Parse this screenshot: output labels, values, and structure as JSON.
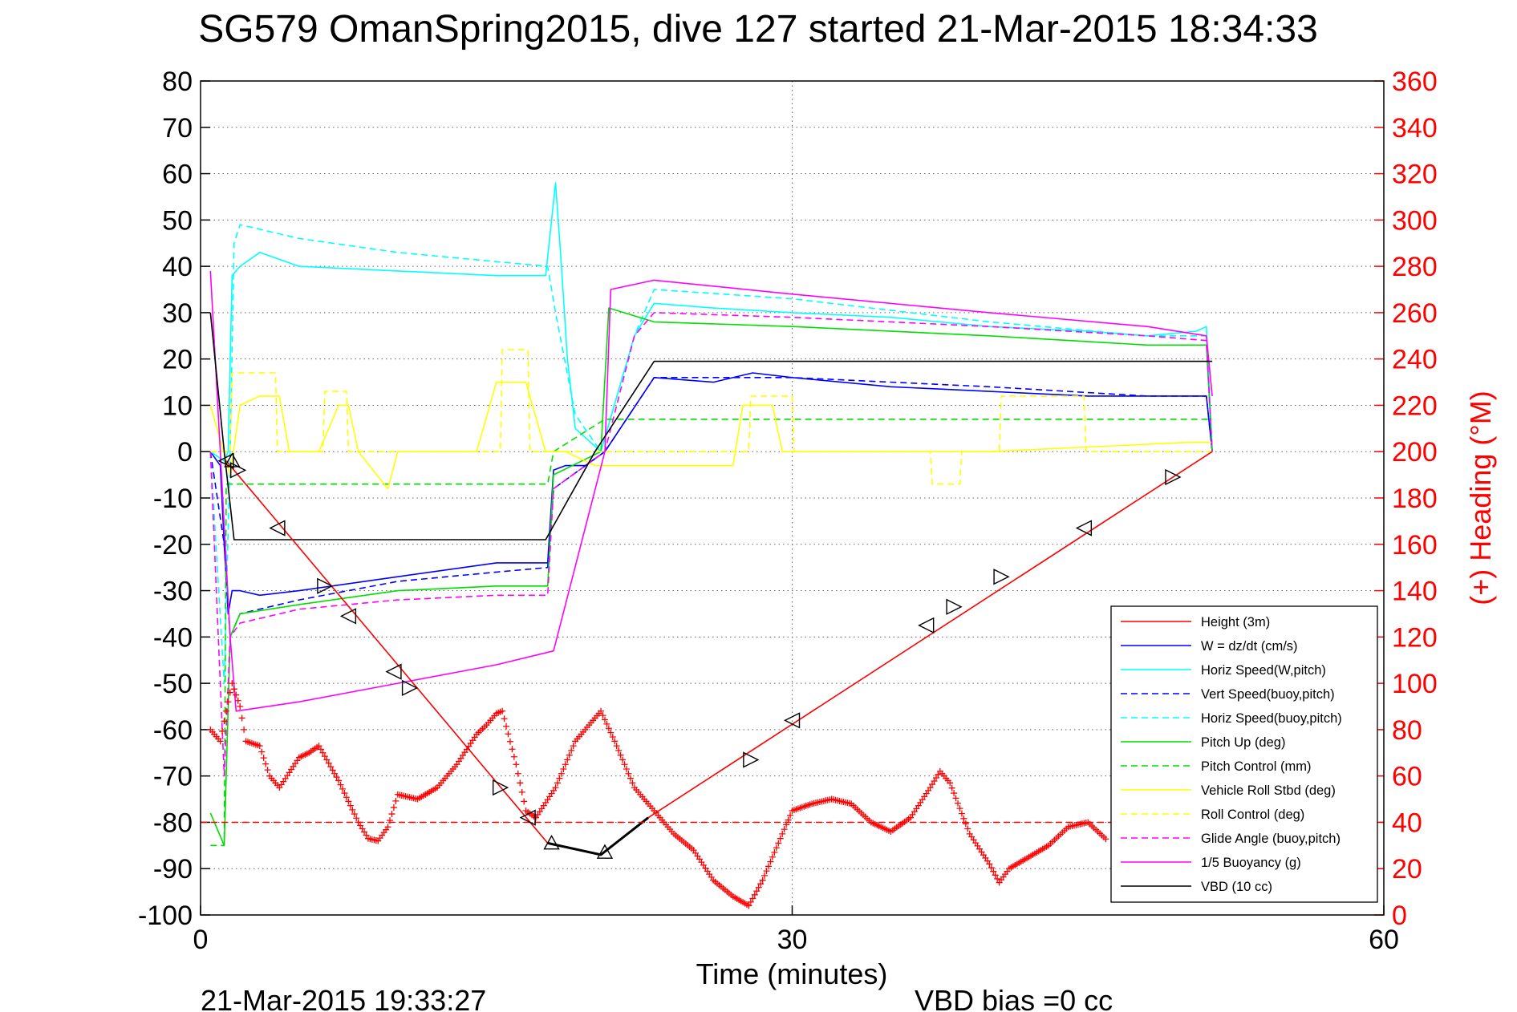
{
  "chart_data": {
    "type": "line",
    "title": "SG579 OmanSpring2015, dive 127 started 21-Mar-2015 18:34:33",
    "xlabel": "Time (minutes)",
    "ylabel_right": "(+) Heading (°M)",
    "xlim": [
      0,
      60
    ],
    "ylim": [
      -100,
      80
    ],
    "ylim_right": [
      0,
      360
    ],
    "x_ticks": [
      "0",
      "30",
      "60"
    ],
    "y_ticks": [
      "80",
      "70",
      "60",
      "50",
      "40",
      "30",
      "20",
      "10",
      "0",
      "-10",
      "-20",
      "-30",
      "-40",
      "-50",
      "-60",
      "-70",
      "-80",
      "-90",
      "-100"
    ],
    "y_ticks_right": [
      "360",
      "340",
      "320",
      "300",
      "280",
      "260",
      "240",
      "220",
      "200",
      "180",
      "160",
      "140",
      "120",
      "100",
      "80",
      "60",
      "40",
      "20",
      "0"
    ],
    "grid": true,
    "legend_position": "bottom-right",
    "footer_left": "21-Mar-2015 19:33:27",
    "footer_right": "VBD bias =0 cc",
    "series": [
      {
        "name": "Height (3m)",
        "color": "#ff0000",
        "style": "solid",
        "x": [],
        "y": []
      },
      {
        "name": "W = dz/dt (cm/s)",
        "color": "#0000ff",
        "style": "solid",
        "x": [
          0.5,
          1.0,
          1.2,
          1.4,
          1.6,
          2.0,
          3.0,
          5.0,
          10.0,
          15.0,
          17.6,
          17.9,
          18.5,
          19.5,
          20.5,
          23.0,
          26.0,
          28.0,
          30.0,
          35.0,
          40.0,
          45.0,
          48.0,
          50.5,
          51.0,
          51.3
        ],
        "y": [
          0,
          -3,
          -20,
          -35,
          -30,
          -30,
          -31,
          -30,
          -27,
          -24,
          -24,
          -4,
          -3,
          -3,
          0,
          16,
          15,
          17,
          16,
          14,
          13,
          12,
          12,
          12,
          12,
          0
        ]
      },
      {
        "name": "Horiz Speed(W,pitch)",
        "color": "#00ffff",
        "style": "solid",
        "x": [
          0.5,
          1.2,
          1.4,
          1.6,
          2.0,
          3.0,
          5.0,
          10.0,
          15.0,
          17.5,
          18.0,
          18.3,
          18.6,
          19.0,
          20.3,
          22.0,
          23.0,
          26.0,
          30.0,
          35.0,
          40.0,
          45.0,
          48.0,
          50.5,
          51.0,
          51.3
        ],
        "y": [
          0,
          -2,
          0,
          38,
          40,
          43,
          40,
          39,
          38,
          38,
          58,
          40,
          20,
          5,
          0,
          25,
          32,
          31,
          30,
          29,
          27,
          26,
          25,
          26,
          27,
          0
        ]
      },
      {
        "name": "Vert Speed(buoy,pitch)",
        "color": "#0000ff",
        "style": "dashed",
        "x": [
          0.5,
          1.2,
          1.5,
          2.0,
          5.0,
          10.0,
          15.0,
          17.6,
          17.9,
          20.5,
          23.0,
          30.0,
          40.0,
          48.0,
          51.0,
          51.3
        ],
        "y": [
          0,
          -20,
          -40,
          -35,
          -32,
          -28,
          -26,
          -25,
          -8,
          0,
          16,
          16,
          14,
          12,
          12,
          0
        ]
      },
      {
        "name": "Horiz Speed(buoy,pitch)",
        "color": "#00ffff",
        "style": "dashed",
        "x": [
          0.5,
          1.2,
          1.5,
          1.7,
          2.0,
          5.0,
          10.0,
          15.0,
          17.6,
          18.0,
          19.0,
          20.3,
          22.0,
          23.0,
          30.0,
          40.0,
          48.0,
          51.0,
          51.3
        ],
        "y": [
          0,
          -50,
          0,
          45,
          49,
          46,
          43,
          41,
          40,
          30,
          8,
          0,
          25,
          35,
          33,
          28,
          25,
          25,
          0
        ]
      },
      {
        "name": "Pitch Up (deg)",
        "color": "#00dd00",
        "style": "solid",
        "x": [
          0.5,
          1.2,
          1.5,
          2.0,
          5.0,
          10.0,
          15.0,
          17.6,
          17.9,
          20.3,
          20.7,
          23.0,
          30.0,
          40.0,
          48.0,
          51.0,
          51.3
        ],
        "y": [
          -78,
          -85,
          -40,
          -35,
          -33,
          -30,
          -29,
          -29,
          -5,
          0,
          31,
          28,
          27,
          25,
          23,
          23,
          0
        ]
      },
      {
        "name": "Pitch Control (mm)",
        "color": "#00dd00",
        "style": "dashed",
        "x": [
          0.5,
          1.2,
          1.3,
          17.6,
          17.9,
          20.5,
          51.3
        ],
        "y": [
          -85,
          -85,
          -7,
          -7,
          0,
          7,
          7
        ]
      },
      {
        "name": "Vehicle Roll Stbd (deg)",
        "color": "#ffff00",
        "style": "solid",
        "x": [
          0.5,
          1.5,
          2.0,
          3.0,
          4.0,
          4.5,
          5.0,
          6.0,
          7.0,
          7.5,
          8.0,
          9.5,
          10.0,
          11.0,
          14.0,
          15.0,
          16.5,
          17.5,
          18.5,
          20.0,
          27.0,
          27.5,
          29.0,
          29.5,
          30.0,
          40.0,
          50.0,
          51.3
        ],
        "y": [
          10,
          -5,
          10,
          12,
          12,
          0,
          0,
          0,
          10,
          10,
          0,
          -8,
          0,
          0,
          0,
          15,
          15,
          0,
          0,
          -3,
          -3,
          10,
          10,
          0,
          0,
          0,
          2,
          2
        ]
      },
      {
        "name": "Roll Control (deg)",
        "color": "#ffff00",
        "style": "dashed",
        "x": [
          0.5,
          1.5,
          1.6,
          3.8,
          3.9,
          6.2,
          6.3,
          7.4,
          7.5,
          9.8,
          9.9,
          15.2,
          15.3,
          16.6,
          16.7,
          27.8,
          27.9,
          30.0,
          30.1,
          37.0,
          37.1,
          38.5,
          38.6,
          40.5,
          40.6,
          44.8,
          44.9,
          51.3
        ],
        "y": [
          0,
          0,
          17,
          17,
          0,
          0,
          13,
          13,
          0,
          0,
          0,
          0,
          22,
          22,
          0,
          0,
          12,
          12,
          0,
          0,
          -7,
          -7,
          0,
          0,
          12,
          12,
          0,
          0
        ]
      },
      {
        "name": "Glide Angle (buoy,pitch)",
        "color": "#ff00ff",
        "style": "dashed",
        "x": [
          0.5,
          1.2,
          1.5,
          2.0,
          5.0,
          10.0,
          15.0,
          17.6,
          17.9,
          20.5,
          22.0,
          23.0,
          30.0,
          40.0,
          48.0,
          51.0,
          51.3
        ],
        "y": [
          0,
          -70,
          -40,
          -37,
          -34,
          -32,
          -31,
          -31,
          -8,
          0,
          25,
          30,
          29,
          27,
          25,
          24,
          0
        ]
      },
      {
        "name": "1/5 Buoyancy (g)",
        "color": "#ff00ff",
        "style": "solid",
        "x": [
          0.5,
          1.0,
          1.5,
          1.8,
          5.0,
          10.0,
          15.0,
          17.9,
          20.5,
          20.8,
          23.0,
          30.0,
          40.0,
          48.0,
          51.0,
          51.3
        ],
        "y": [
          39,
          0,
          -40,
          -56,
          -54,
          -50,
          -46,
          -43,
          0,
          35,
          37,
          34,
          30,
          27,
          25,
          12
        ]
      },
      {
        "name": "VBD (10 cc)",
        "color": "#000000",
        "style": "solid",
        "x": [
          0.5,
          1.2,
          1.7,
          17.5,
          20.0,
          23.0,
          51.3
        ],
        "y": [
          30,
          0,
          -19,
          -19,
          0,
          19.5,
          19.5
        ]
      }
    ],
    "height_series": {
      "color": "#ff0000",
      "x": [
        1.3,
        17.6,
        20.3,
        22.7,
        51.3
      ],
      "y": [
        -2,
        -84.5,
        -87,
        -79,
        0
      ],
      "bottom_segment_color": "#000000",
      "bottom_segment_x": [
        17.6,
        20.3,
        22.7
      ],
      "bottom_segment_y": [
        -84.5,
        -87,
        -79
      ]
    },
    "triangle_markers": [
      {
        "x": 1.3,
        "y": -2,
        "dir": "left"
      },
      {
        "x": 1.6,
        "y": -2,
        "dir": "up"
      },
      {
        "x": 1.9,
        "y": -4,
        "dir": "right"
      },
      {
        "x": 3.9,
        "y": -16.5,
        "dir": "left"
      },
      {
        "x": 6.3,
        "y": -29,
        "dir": "right"
      },
      {
        "x": 7.5,
        "y": -35.5,
        "dir": "left"
      },
      {
        "x": 9.8,
        "y": -47.5,
        "dir": "left"
      },
      {
        "x": 10.6,
        "y": -51,
        "dir": "right"
      },
      {
        "x": 15.2,
        "y": -72.5,
        "dir": "right"
      },
      {
        "x": 16.6,
        "y": -79,
        "dir": "left"
      },
      {
        "x": 17.8,
        "y": -84.5,
        "dir": "up"
      },
      {
        "x": 20.5,
        "y": -86.5,
        "dir": "up"
      },
      {
        "x": 27.9,
        "y": -66.5,
        "dir": "right"
      },
      {
        "x": 30.0,
        "y": -58,
        "dir": "left"
      },
      {
        "x": 36.8,
        "y": -37.5,
        "dir": "left"
      },
      {
        "x": 38.2,
        "y": -33.5,
        "dir": "right"
      },
      {
        "x": 40.6,
        "y": -27,
        "dir": "right"
      },
      {
        "x": 44.8,
        "y": -16.5,
        "dir": "left"
      },
      {
        "x": 49.3,
        "y": -5.5,
        "dir": "right"
      }
    ],
    "heading_series": {
      "color": "#ff0000",
      "marker": "+",
      "x": [
        0.5,
        1.0,
        1.3,
        1.6,
        2.0,
        2.3,
        3.0,
        3.5,
        4.0,
        5.0,
        5.5,
        6.0,
        7.0,
        8.0,
        8.5,
        9.0,
        9.5,
        10.0,
        11.0,
        12.0,
        13.0,
        14.0,
        14.5,
        15.0,
        15.3,
        16.0,
        16.5,
        17.0,
        18.0,
        19.0,
        20.3,
        21.0,
        22.0,
        23.0,
        24.0,
        25.0,
        26.0,
        27.0,
        27.8,
        28.5,
        29.5,
        30.0,
        31.0,
        32.0,
        33.0,
        34.0,
        35.0,
        36.0,
        37.0,
        37.5,
        38.0,
        39.0,
        40.0,
        40.5,
        41.0,
        42.0,
        43.0,
        44.0,
        45.0,
        46.0
      ],
      "y": [
        80,
        75,
        88,
        100,
        90,
        75,
        73,
        60,
        55,
        68,
        70,
        73,
        58,
        40,
        33,
        32,
        38,
        52,
        50,
        55,
        65,
        78,
        82,
        87,
        88,
        65,
        45,
        42,
        55,
        75,
        88,
        75,
        55,
        45,
        35,
        28,
        15,
        8,
        4,
        15,
        35,
        45,
        48,
        50,
        48,
        40,
        36,
        42,
        55,
        62,
        57,
        35,
        22,
        14,
        20,
        25,
        30,
        38,
        40,
        32
      ]
    },
    "heading_ref_dashed": {
      "color": "#ff0000",
      "value": 40
    }
  }
}
